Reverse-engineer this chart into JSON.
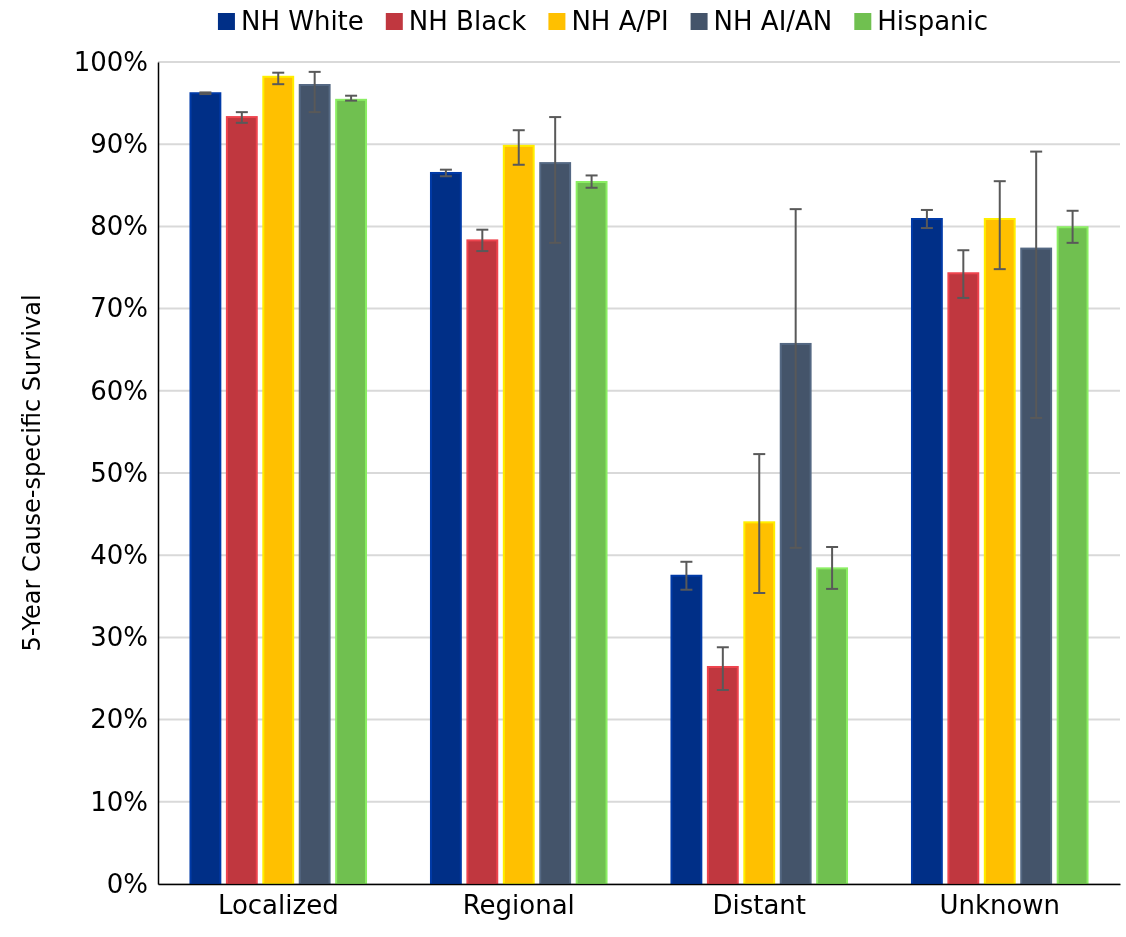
{
  "chart_data": {
    "type": "bar",
    "ylabel": "5-Year Cause-specific Survival",
    "categories": [
      "Localized",
      "Regional",
      "Distant",
      "Unknown"
    ],
    "series": [
      {
        "name": "NH White",
        "color": "#002f87",
        "values": [
          96.2,
          86.5,
          37.5,
          80.9
        ],
        "errors": [
          [
            96.1,
            96.3
          ],
          [
            86.1,
            86.9
          ],
          [
            35.8,
            39.2
          ],
          [
            79.8,
            82.0
          ]
        ]
      },
      {
        "name": "NH Black",
        "color": "#c0373f",
        "values": [
          93.3,
          78.3,
          26.4,
          74.3
        ],
        "errors": [
          [
            92.6,
            93.9
          ],
          [
            77.0,
            79.6
          ],
          [
            23.6,
            28.8
          ],
          [
            71.3,
            77.1
          ]
        ]
      },
      {
        "name": "NH A/PI",
        "color": "#ffc000",
        "values": [
          98.2,
          89.8,
          44.0,
          80.9
        ],
        "errors": [
          [
            97.3,
            98.7
          ],
          [
            87.5,
            91.7
          ],
          [
            35.4,
            52.3
          ],
          [
            74.8,
            85.5
          ]
        ]
      },
      {
        "name": "NH AI/AN",
        "color": "#44546a",
        "values": [
          97.2,
          87.7,
          65.7,
          77.3
        ],
        "errors": [
          [
            93.9,
            98.8
          ],
          [
            78.0,
            93.3
          ],
          [
            40.9,
            82.1
          ],
          [
            56.7,
            89.1
          ]
        ]
      },
      {
        "name": "Hispanic",
        "color": "#70c050",
        "values": [
          95.4,
          85.4,
          38.4,
          79.9
        ],
        "errors": [
          [
            95.3,
            95.9
          ],
          [
            84.7,
            86.2
          ],
          [
            35.9,
            41.0
          ],
          [
            78.0,
            81.9
          ]
        ]
      }
    ],
    "ylim": [
      0,
      100
    ],
    "yticks": [
      {
        "value": 0,
        "label": "0%"
      },
      {
        "value": 10,
        "label": "10%"
      },
      {
        "value": 20,
        "label": "20%"
      },
      {
        "value": 30,
        "label": "30%"
      },
      {
        "value": 40,
        "label": "40%"
      },
      {
        "value": 50,
        "label": "50%"
      },
      {
        "value": 60,
        "label": "60%"
      },
      {
        "value": 70,
        "label": "70%"
      },
      {
        "value": 80,
        "label": "80%"
      },
      {
        "value": 90,
        "label": "90%"
      },
      {
        "value": 100,
        "label": "100%"
      }
    ],
    "grid": "y",
    "legend": "top"
  }
}
